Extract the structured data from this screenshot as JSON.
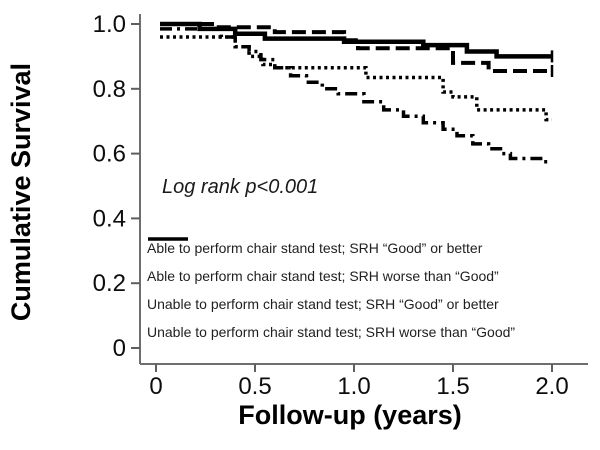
{
  "chart_data": {
    "type": "line",
    "subtype": "kaplan-meier-step-curves",
    "title": "",
    "xlabel": "Follow-up (years)",
    "ylabel": "Cumulative Survival",
    "annotation": "Log rank p<0.001",
    "xlim": [
      0,
      2.0
    ],
    "ylim": [
      0,
      1.0
    ],
    "x_ticks": [
      "0",
      "0.5",
      "1.0",
      "1.5",
      "2.0"
    ],
    "x_tick_values": [
      0,
      0.5,
      1.0,
      1.5,
      2.0
    ],
    "y_ticks": [
      "1.0",
      "0.8",
      "0.6",
      "0.4",
      "0.2",
      "0"
    ],
    "y_tick_values": [
      1.0,
      0.8,
      0.6,
      0.4,
      0.2,
      0
    ],
    "grid": "off",
    "legend_position": "inside-bottom-left",
    "line_color": "#000000",
    "background_color": "#ffffff",
    "axis_color": "#6e6e6e",
    "series": [
      {
        "id": "able-srh-good",
        "name": "Able to perform chair stand test; SRH “Good” or better",
        "style": "solid",
        "end_tick": true,
        "points": [
          [
            0.02,
            1.0
          ],
          [
            0.22,
            0.985
          ],
          [
            0.4,
            0.97
          ],
          [
            0.55,
            0.955
          ],
          [
            0.95,
            0.945
          ],
          [
            1.35,
            0.935
          ],
          [
            1.57,
            0.915
          ],
          [
            1.72,
            0.9
          ],
          [
            2.0,
            0.9
          ]
        ]
      },
      {
        "id": "able-srh-worse",
        "name": "Able to perform chair stand test; SRH worse than “Good”",
        "style": "dashed",
        "end_tick": true,
        "points": [
          [
            0.02,
            1.0
          ],
          [
            0.3,
            0.99
          ],
          [
            0.6,
            0.975
          ],
          [
            0.95,
            0.95
          ],
          [
            1.02,
            0.925
          ],
          [
            1.5,
            0.88
          ],
          [
            1.68,
            0.855
          ],
          [
            2.0,
            0.855
          ]
        ]
      },
      {
        "id": "unable-srh-good",
        "name": "Unable to perform chair stand test; SRH “Good” or better",
        "style": "dotted",
        "end_tick": false,
        "points": [
          [
            0.02,
            0.96
          ],
          [
            0.4,
            0.93
          ],
          [
            0.47,
            0.9
          ],
          [
            0.54,
            0.875
          ],
          [
            0.6,
            0.865
          ],
          [
            1.06,
            0.835
          ],
          [
            1.45,
            0.79
          ],
          [
            1.5,
            0.775
          ],
          [
            1.62,
            0.735
          ],
          [
            1.97,
            0.705
          ],
          [
            2.0,
            0.705
          ]
        ]
      },
      {
        "id": "unable-srh-worse",
        "name": "Unable to perform chair stand test; SRH worse than “Good”",
        "style": "dashdot",
        "end_tick": false,
        "points": [
          [
            0.02,
            0.985
          ],
          [
            0.33,
            0.96
          ],
          [
            0.4,
            0.93
          ],
          [
            0.47,
            0.915
          ],
          [
            0.53,
            0.89
          ],
          [
            0.6,
            0.865
          ],
          [
            0.68,
            0.84
          ],
          [
            0.76,
            0.82
          ],
          [
            0.84,
            0.8
          ],
          [
            0.92,
            0.785
          ],
          [
            1.05,
            0.76
          ],
          [
            1.15,
            0.735
          ],
          [
            1.25,
            0.715
          ],
          [
            1.35,
            0.695
          ],
          [
            1.45,
            0.675
          ],
          [
            1.52,
            0.655
          ],
          [
            1.6,
            0.63
          ],
          [
            1.68,
            0.615
          ],
          [
            1.74,
            0.6
          ],
          [
            1.79,
            0.585
          ],
          [
            1.96,
            0.575
          ],
          [
            2.0,
            0.575
          ]
        ]
      }
    ]
  }
}
